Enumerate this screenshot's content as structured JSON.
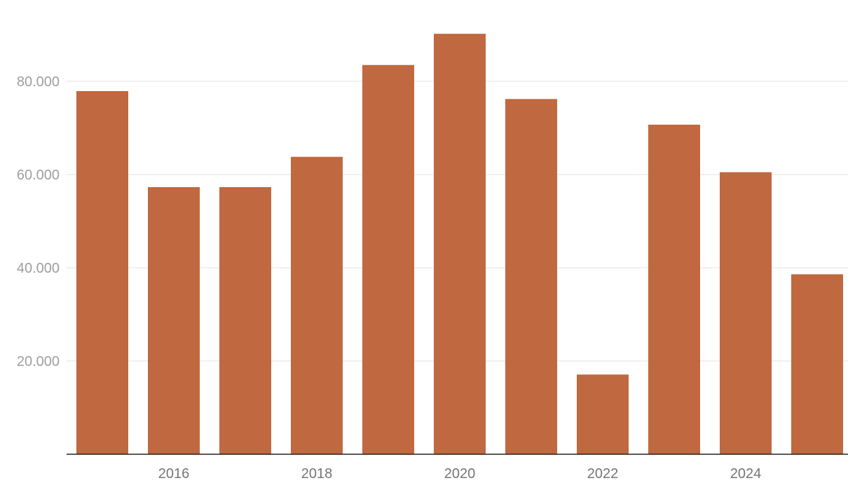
{
  "chart_data": {
    "type": "bar",
    "title": "",
    "xlabel": "",
    "ylabel": "",
    "categories": [
      "2015",
      "2016",
      "2017",
      "2018",
      "2019",
      "2020",
      "2021",
      "2022",
      "2023",
      "2024",
      "2025"
    ],
    "values": [
      77900,
      57300,
      57300,
      63800,
      83500,
      90200,
      76200,
      17100,
      70700,
      60500,
      38600
    ],
    "x_tick_labels": [
      "2016",
      "2018",
      "2020",
      "2022",
      "2024"
    ],
    "y_ticks": [
      20000,
      40000,
      60000,
      80000
    ],
    "y_tick_labels": [
      "20.000",
      "40.000",
      "60.000",
      "80.000"
    ],
    "ylim": [
      0,
      90200
    ],
    "grid": true,
    "legend": "none",
    "bar_color": "#c0683f"
  }
}
